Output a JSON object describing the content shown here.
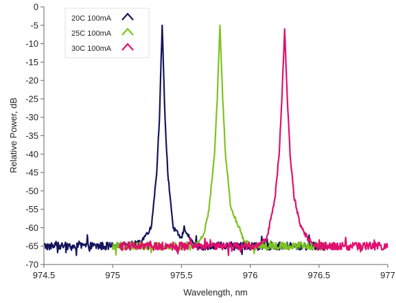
{
  "chart_data": {
    "type": "line",
    "title": "",
    "xlabel": "Wavelength, nm",
    "ylabel": "Relative Power, dB",
    "xlim": [
      974.5,
      977
    ],
    "ylim": [
      -70,
      0
    ],
    "xticks": [
      974.5,
      975,
      975.5,
      976,
      976.5,
      977
    ],
    "xtick_labels": [
      "974.5",
      "975",
      "975.5",
      "976",
      "976.5",
      "977"
    ],
    "yticks": [
      0,
      -5,
      -10,
      -15,
      -20,
      -25,
      -30,
      -35,
      -40,
      -45,
      -50,
      -55,
      -60,
      -65,
      -70
    ],
    "ytick_labels": [
      "0",
      "-5",
      "-10",
      "-15",
      "-20",
      "-25",
      "-30",
      "-35",
      "-40",
      "-45",
      "-50",
      "-55",
      "-60",
      "-65",
      "-70"
    ],
    "grid": false,
    "legend_position": "top-left",
    "series": [
      {
        "name": "20C 100mA",
        "color": "#14145c",
        "x_range": [
          974.5,
          976.55
        ],
        "peak_x": 975.36,
        "peak_y": -5,
        "noise_floor": -65,
        "points": [
          [
            975.0,
            -65
          ],
          [
            975.2,
            -64
          ],
          [
            975.28,
            -60
          ],
          [
            975.32,
            -45
          ],
          [
            975.34,
            -30
          ],
          [
            975.36,
            -5
          ],
          [
            975.38,
            -30
          ],
          [
            975.4,
            -45
          ],
          [
            975.44,
            -60
          ],
          [
            975.5,
            -63
          ],
          [
            975.52,
            -60
          ],
          [
            975.56,
            -63
          ],
          [
            975.6,
            -65
          ]
        ]
      },
      {
        "name": "25C 100mA",
        "color": "#7dc322",
        "x_range": [
          975.0,
          976.55
        ],
        "peak_x": 975.78,
        "peak_y": -5,
        "noise_floor": -65,
        "points": [
          [
            975.6,
            -65
          ],
          [
            975.66,
            -62
          ],
          [
            975.7,
            -55
          ],
          [
            975.74,
            -40
          ],
          [
            975.76,
            -25
          ],
          [
            975.78,
            -5
          ],
          [
            975.8,
            -25
          ],
          [
            975.82,
            -40
          ],
          [
            975.86,
            -55
          ],
          [
            975.92,
            -60
          ],
          [
            975.95,
            -63
          ],
          [
            976.0,
            -65
          ]
        ]
      },
      {
        "name": "30C 100mA",
        "color": "#e0106e",
        "x_range": [
          975.05,
          977.0
        ],
        "peak_x": 976.25,
        "peak_y": -6,
        "noise_floor": -65,
        "points": [
          [
            976.05,
            -65
          ],
          [
            976.12,
            -63
          ],
          [
            976.18,
            -52
          ],
          [
            976.21,
            -40
          ],
          [
            976.23,
            -25
          ],
          [
            976.25,
            -6
          ],
          [
            976.27,
            -25
          ],
          [
            976.29,
            -40
          ],
          [
            976.32,
            -52
          ],
          [
            976.37,
            -60
          ],
          [
            976.42,
            -63
          ],
          [
            976.48,
            -65
          ]
        ]
      }
    ]
  }
}
